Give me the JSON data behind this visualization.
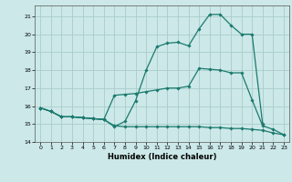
{
  "xlabel": "Humidex (Indice chaleur)",
  "background_color": "#cce8e8",
  "grid_color": "#aacccc",
  "line_color": "#1a7a6e",
  "xlim": [
    -0.5,
    23.5
  ],
  "ylim": [
    14,
    21.6
  ],
  "yticks": [
    14,
    15,
    16,
    17,
    18,
    19,
    20,
    21
  ],
  "xticks": [
    0,
    1,
    2,
    3,
    4,
    5,
    6,
    7,
    8,
    9,
    10,
    11,
    12,
    13,
    14,
    15,
    16,
    17,
    18,
    19,
    20,
    21,
    22,
    23
  ],
  "line1_x": [
    0,
    1,
    2,
    3,
    4,
    5,
    6,
    7,
    8,
    9,
    10,
    11,
    12,
    13,
    14,
    15,
    16,
    17,
    18,
    19,
    20,
    21,
    22,
    23
  ],
  "line1_y": [
    15.9,
    15.7,
    15.4,
    15.4,
    15.35,
    15.3,
    15.25,
    14.9,
    14.85,
    14.85,
    14.85,
    14.85,
    14.85,
    14.85,
    14.85,
    14.85,
    14.8,
    14.8,
    14.75,
    14.75,
    14.7,
    14.65,
    14.5,
    14.4
  ],
  "line2_x": [
    0,
    1,
    2,
    3,
    4,
    5,
    6,
    7,
    8,
    9,
    10,
    11,
    12,
    13,
    14,
    15,
    16,
    17,
    18,
    19,
    20,
    21,
    22,
    23
  ],
  "line2_y": [
    15.9,
    15.7,
    15.4,
    15.4,
    15.35,
    15.3,
    15.25,
    16.6,
    16.65,
    16.7,
    16.8,
    16.9,
    17.0,
    17.0,
    17.1,
    18.1,
    18.05,
    18.0,
    17.85,
    17.85,
    16.35,
    14.9,
    14.7,
    14.4
  ],
  "line3_x": [
    0,
    1,
    2,
    3,
    4,
    5,
    6,
    7,
    8,
    9,
    10,
    11,
    12,
    13,
    14,
    15,
    16,
    17,
    18,
    19,
    20,
    21
  ],
  "line3_y": [
    15.9,
    15.7,
    15.4,
    15.4,
    15.35,
    15.3,
    15.25,
    14.85,
    15.15,
    16.3,
    18.0,
    19.3,
    19.5,
    19.55,
    19.35,
    20.3,
    21.1,
    21.1,
    20.5,
    20.0,
    20.0,
    15.0
  ]
}
